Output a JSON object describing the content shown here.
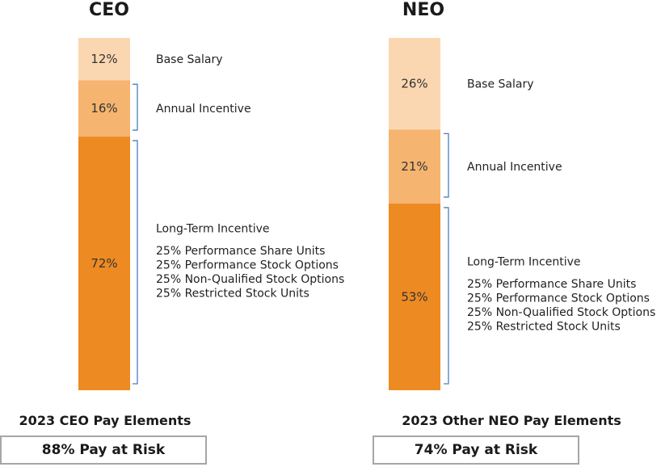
{
  "colors": {
    "base_salary": "#fbd7b1",
    "annual_incentive": "#f5b46f",
    "long_term_incentive": "#ee8a22",
    "bracket": "#4a7fc1",
    "box_border": "#a6a6a6"
  },
  "chart_data": [
    {
      "type": "bar",
      "stacked": true,
      "heading": "CEO",
      "title": "2023 CEO Pay Elements",
      "pay_at_risk": "88% Pay at Risk",
      "segments": [
        {
          "name": "Base Salary",
          "value": 12,
          "label": "12%",
          "details": []
        },
        {
          "name": "Annual Incentive",
          "value": 16,
          "label": "16%",
          "details": []
        },
        {
          "name": "Long-Term Incentive",
          "value": 72,
          "label": "72%",
          "details": [
            "25% Performance Share Units",
            "25% Performance Stock Options",
            "25% Non-Qualified Stock Options",
            "25% Restricted Stock Units"
          ]
        }
      ]
    },
    {
      "type": "bar",
      "stacked": true,
      "heading": "NEO",
      "title": "2023 Other NEO Pay Elements",
      "pay_at_risk": "74% Pay at Risk",
      "segments": [
        {
          "name": "Base Salary",
          "value": 26,
          "label": "26%",
          "details": []
        },
        {
          "name": "Annual Incentive",
          "value": 21,
          "label": "21%",
          "details": []
        },
        {
          "name": "Long-Term Incentive",
          "value": 53,
          "label": "53%",
          "details": [
            "25% Performance Share Units",
            "25% Performance Stock Options",
            "25% Non-Qualified Stock Options",
            "25% Restricted Stock Units"
          ]
        }
      ]
    }
  ]
}
